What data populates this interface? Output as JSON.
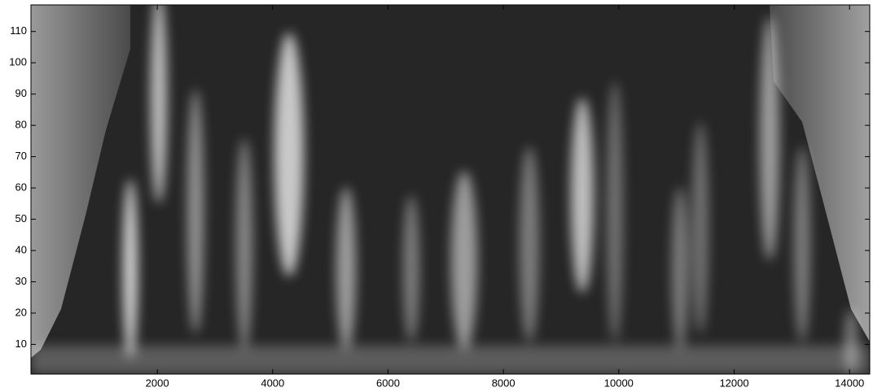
{
  "chart_data": {
    "type": "image",
    "xlim": [
      -190,
      14350
    ],
    "xticks": [
      2000,
      4000,
      6000,
      8000,
      10000,
      12000,
      14000
    ],
    "ylim": [
      0.5,
      118.5
    ],
    "yticks": [
      10,
      20,
      30,
      40,
      50,
      60,
      70,
      80,
      90,
      100,
      110
    ]
  }
}
